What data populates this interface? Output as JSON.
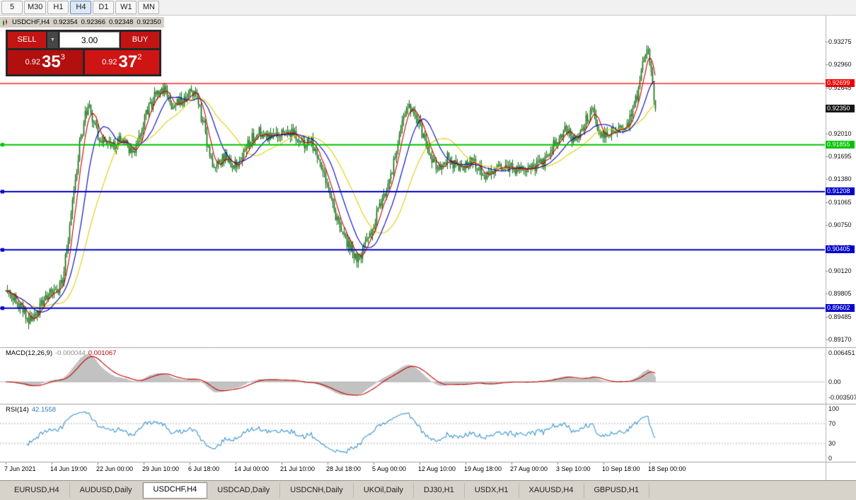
{
  "toolbar": {
    "timeframes": [
      "5",
      "M30",
      "H1",
      "H4",
      "D1",
      "W1",
      "MN"
    ],
    "active_index": 3
  },
  "chart_header": {
    "symbol": "USDCHF,H4",
    "open": "0.92354",
    "high": "0.92366",
    "low": "0.92348",
    "close": "0.92350"
  },
  "icons": {
    "dropdown_arrow": "▼"
  },
  "trade_panel": {
    "sell_label": "SELL",
    "buy_label": "BUY",
    "volume": "3.00",
    "sell_price": {
      "prefix": "0.92",
      "big": "35",
      "sup": "3"
    },
    "buy_price": {
      "prefix": "0.92",
      "big": "37",
      "sup": "2"
    }
  },
  "colors": {
    "candle": "#0d6b0d",
    "ma_fast": "#c80000",
    "ma_mid": "#0000c0",
    "ma_slow": "#e2ce00",
    "macd_hist": "#a8a8a8",
    "macd_signal": "#c40000",
    "rsi_line": "#3a96d2",
    "badge_current": "#151515"
  },
  "tabs": {
    "items": [
      "EURUSD,H4",
      "AUDUSD,Daily",
      "USDCHF,H4",
      "USDCAD,Daily",
      "USDCNH,Daily",
      "UKOil,Daily",
      "DJ30,H1",
      "USDX,H1",
      "XAUUSD,H4",
      "GBPUSD,H1"
    ],
    "active_index": 2
  },
  "chart_data": {
    "type": "candlestick",
    "symbol": "USDCHF",
    "timeframe": "H4",
    "visible_price_range": {
      "min": 0.8907,
      "max": 0.9358
    },
    "n_candles": 460,
    "seed": 20210918,
    "noise": 0.0008,
    "wick": 0.0008,
    "price_anchors": [
      [
        0,
        0.8985
      ],
      [
        5,
        0.8974
      ],
      [
        10,
        0.8962
      ],
      [
        14,
        0.895
      ],
      [
        18,
        0.8941
      ],
      [
        22,
        0.8952
      ],
      [
        26,
        0.897
      ],
      [
        31,
        0.8979
      ],
      [
        36,
        0.8983
      ],
      [
        40,
        0.9
      ],
      [
        44,
        0.9055
      ],
      [
        48,
        0.912
      ],
      [
        52,
        0.9185
      ],
      [
        56,
        0.9228
      ],
      [
        58,
        0.924
      ],
      [
        61,
        0.9224
      ],
      [
        65,
        0.92
      ],
      [
        70,
        0.9188
      ],
      [
        75,
        0.918
      ],
      [
        80,
        0.919
      ],
      [
        85,
        0.9184
      ],
      [
        90,
        0.9173
      ],
      [
        95,
        0.92
      ],
      [
        100,
        0.9232
      ],
      [
        105,
        0.9252
      ],
      [
        110,
        0.926
      ],
      [
        113,
        0.9263
      ],
      [
        117,
        0.924
      ],
      [
        121,
        0.9242
      ],
      [
        126,
        0.925
      ],
      [
        131,
        0.9261
      ],
      [
        135,
        0.9248
      ],
      [
        139,
        0.9218
      ],
      [
        143,
        0.9178
      ],
      [
        147,
        0.9154
      ],
      [
        151,
        0.9163
      ],
      [
        155,
        0.917
      ],
      [
        159,
        0.916
      ],
      [
        163,
        0.9157
      ],
      [
        167,
        0.917
      ],
      [
        171,
        0.9188
      ],
      [
        175,
        0.9198
      ],
      [
        179,
        0.9204
      ],
      [
        183,
        0.9196
      ],
      [
        187,
        0.9196
      ],
      [
        191,
        0.92
      ],
      [
        195,
        0.9205
      ],
      [
        199,
        0.9206
      ],
      [
        203,
        0.92
      ],
      [
        207,
        0.9192
      ],
      [
        211,
        0.9188
      ],
      [
        215,
        0.9192
      ],
      [
        219,
        0.9178
      ],
      [
        223,
        0.9155
      ],
      [
        227,
        0.9125
      ],
      [
        231,
        0.9098
      ],
      [
        235,
        0.9075
      ],
      [
        239,
        0.906
      ],
      [
        243,
        0.9044
      ],
      [
        247,
        0.9033
      ],
      [
        250,
        0.9027
      ],
      [
        253,
        0.9043
      ],
      [
        256,
        0.9058
      ],
      [
        260,
        0.9078
      ],
      [
        264,
        0.91
      ],
      [
        268,
        0.9122
      ],
      [
        272,
        0.9142
      ],
      [
        276,
        0.918
      ],
      [
        280,
        0.9222
      ],
      [
        284,
        0.9238
      ],
      [
        288,
        0.9236
      ],
      [
        292,
        0.9215
      ],
      [
        296,
        0.9192
      ],
      [
        300,
        0.9165
      ],
      [
        304,
        0.9152
      ],
      [
        308,
        0.916
      ],
      [
        312,
        0.9167
      ],
      [
        316,
        0.9158
      ],
      [
        320,
        0.9152
      ],
      [
        324,
        0.9158
      ],
      [
        328,
        0.9162
      ],
      [
        332,
        0.9157
      ],
      [
        336,
        0.9148
      ],
      [
        340,
        0.9143
      ],
      [
        344,
        0.9149
      ],
      [
        348,
        0.9152
      ],
      [
        352,
        0.9155
      ],
      [
        356,
        0.9154
      ],
      [
        360,
        0.915
      ],
      [
        364,
        0.9148
      ],
      [
        368,
        0.9146
      ],
      [
        372,
        0.9151
      ],
      [
        376,
        0.9156
      ],
      [
        380,
        0.916
      ],
      [
        384,
        0.9172
      ],
      [
        388,
        0.9188
      ],
      [
        392,
        0.9202
      ],
      [
        396,
        0.9206
      ],
      [
        400,
        0.9193
      ],
      [
        404,
        0.9197
      ],
      [
        408,
        0.9212
      ],
      [
        412,
        0.9226
      ],
      [
        415,
        0.923
      ],
      [
        418,
        0.9214
      ],
      [
        421,
        0.9202
      ],
      [
        424,
        0.9198
      ],
      [
        428,
        0.9204
      ],
      [
        432,
        0.9207
      ],
      [
        436,
        0.9203
      ],
      [
        440,
        0.9218
      ],
      [
        444,
        0.9238
      ],
      [
        448,
        0.9272
      ],
      [
        451,
        0.9305
      ],
      [
        453,
        0.932
      ],
      [
        455,
        0.9302
      ],
      [
        457,
        0.9272
      ],
      [
        459,
        0.9237
      ]
    ],
    "moving_averages": [
      {
        "name": "slow",
        "period": 36,
        "color_key": "ma_slow"
      },
      {
        "name": "mid",
        "period": 18,
        "color_key": "ma_mid"
      },
      {
        "name": "fast",
        "period": 7,
        "color_key": "ma_fast"
      }
    ],
    "hlines": [
      {
        "price": 0.92699,
        "label": "0.92699",
        "color": "#ee0000",
        "width": 1.4,
        "marker": false
      },
      {
        "price": 0.91855,
        "label": "0.91855",
        "color": "#00c400",
        "width": 2,
        "marker": true
      },
      {
        "price": 0.91208,
        "label": "0.91208",
        "color": "#0202c8",
        "width": 2,
        "marker": true
      },
      {
        "price": 0.90405,
        "label": "0.90405",
        "color": "#0202c8",
        "width": 2,
        "marker": true
      },
      {
        "price": 0.89602,
        "label": "0.89602",
        "color": "#0202c8",
        "width": 2,
        "marker": true
      }
    ],
    "current_price": {
      "value": 0.9235,
      "label": "0.92350"
    },
    "y_ticks": [
      "0.93275",
      "0.92960",
      "0.92645",
      "0.92330",
      "0.92010",
      "0.91695",
      "0.91380",
      "0.91065",
      "0.90750",
      "0.90435",
      "0.90120",
      "0.89805",
      "0.89485",
      "0.89170"
    ],
    "x_ticks": [
      "7 Jun 2021",
      "14 Jun 19:00",
      "22 Jun 00:00",
      "29 Jun 10:00",
      "6 Jul 18:00",
      "14 Jul 00:00",
      "21 Jul 10:00",
      "28 Jul 18:00",
      "5 Aug 00:00",
      "12 Aug 10:00",
      "19 Aug 18:00",
      "27 Aug 00:00",
      "3 Sep 10:00",
      "10 Sep 18:00",
      "18 Sep 00:00"
    ],
    "macd": {
      "title": "MACD(12,26,9)",
      "value1": "-0.000044",
      "value2": "0.001067",
      "fast": 12,
      "slow": 26,
      "signal": 9,
      "axis": [
        "0.006451",
        "0.00",
        "-0.003507"
      ],
      "axis_max": 0.006451,
      "axis_min": -0.003507
    },
    "rsi": {
      "title": "RSI(14)",
      "value": "42.1558",
      "period": 14,
      "axis": [
        "100",
        "70",
        "30",
        "0"
      ],
      "levels": [
        70,
        30
      ]
    }
  }
}
